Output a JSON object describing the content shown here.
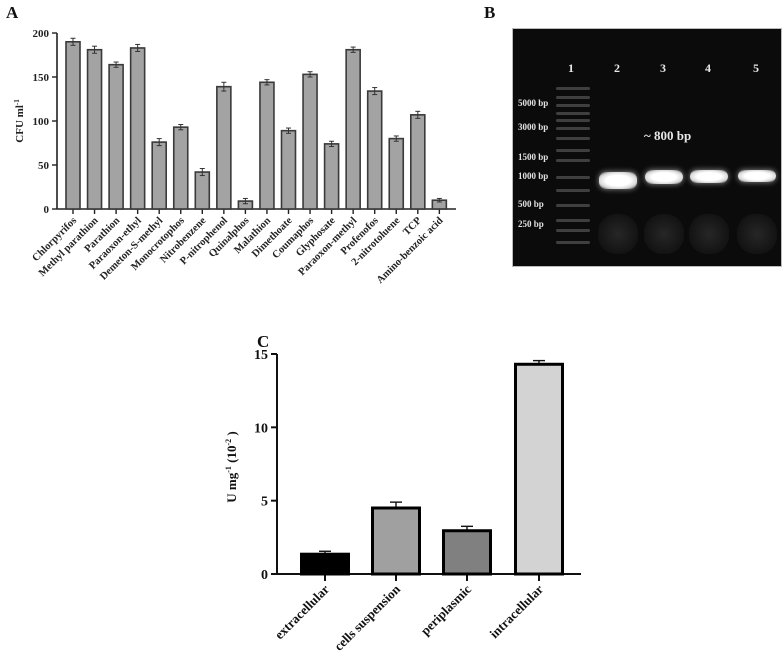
{
  "panels": {
    "A": {
      "label": "A"
    },
    "B": {
      "label": "B"
    },
    "C": {
      "label": "C"
    }
  },
  "chart_data": [
    {
      "id": "A",
      "type": "bar",
      "title": "",
      "xlabel": "",
      "ylabel": "CFU ml",
      "ylabel_superscript": "-1",
      "ylim": [
        0,
        200
      ],
      "yticks": [
        0,
        50,
        100,
        150,
        200
      ],
      "grid": false,
      "bar_color": "#a3a3a3",
      "edge_color": "#3a3a3a",
      "error_bars": true,
      "categories": [
        "Chlorpyrifos",
        "Methyl parathion",
        "Parathion",
        "Paraoxon-ethyl",
        "Demeton-S-methyl",
        "Monocrotophos",
        "Nitrobenzene",
        "P-nitrophenol",
        "Quinalphos",
        "Malathion",
        "Dimethoate",
        "Coumaphos",
        "Glyphosate",
        "Paraoxon-methyl",
        "Profenofos",
        "2-nitrotoluene",
        "TCP",
        "Amino-benzoic acid"
      ],
      "values": [
        190,
        181,
        164,
        183,
        76,
        93,
        42,
        139,
        9,
        144,
        89,
        153,
        74,
        181,
        134,
        80,
        107,
        10
      ],
      "errors": [
        4,
        4,
        3,
        4,
        4,
        3,
        4,
        5,
        3,
        3,
        3,
        3,
        3,
        3,
        4,
        3,
        4,
        2
      ]
    },
    {
      "id": "B",
      "type": "gel_electrophoresis",
      "lanes": [
        "1",
        "2",
        "3",
        "4",
        "5"
      ],
      "ladder_labels": [
        "5000 bp",
        "3000 bp",
        "1500 bp",
        "1000 bp",
        "500 bp",
        "250 bp"
      ],
      "annotation": "~ 800 bp",
      "product_size_bp": 800
    },
    {
      "id": "C",
      "type": "bar",
      "title": "",
      "xlabel": "",
      "ylabel": "U mg",
      "ylabel_superscript": "-1",
      "ylabel_suffix_base": " (10",
      "ylabel_suffix_exp": "-2",
      "ylabel_suffix_close": " )",
      "ylim": [
        0,
        15
      ],
      "yticks": [
        0,
        5,
        10,
        15
      ],
      "grid": false,
      "error_bars": true,
      "categories": [
        "extracellular",
        "cells suspension",
        "periplasmic",
        "intracellular"
      ],
      "values": [
        1.35,
        4.5,
        2.95,
        14.3
      ],
      "errors": [
        0.2,
        0.4,
        0.3,
        0.25
      ],
      "colors": [
        "#000000",
        "#a0a0a0",
        "#808080",
        "#d3d3d3"
      ]
    }
  ]
}
